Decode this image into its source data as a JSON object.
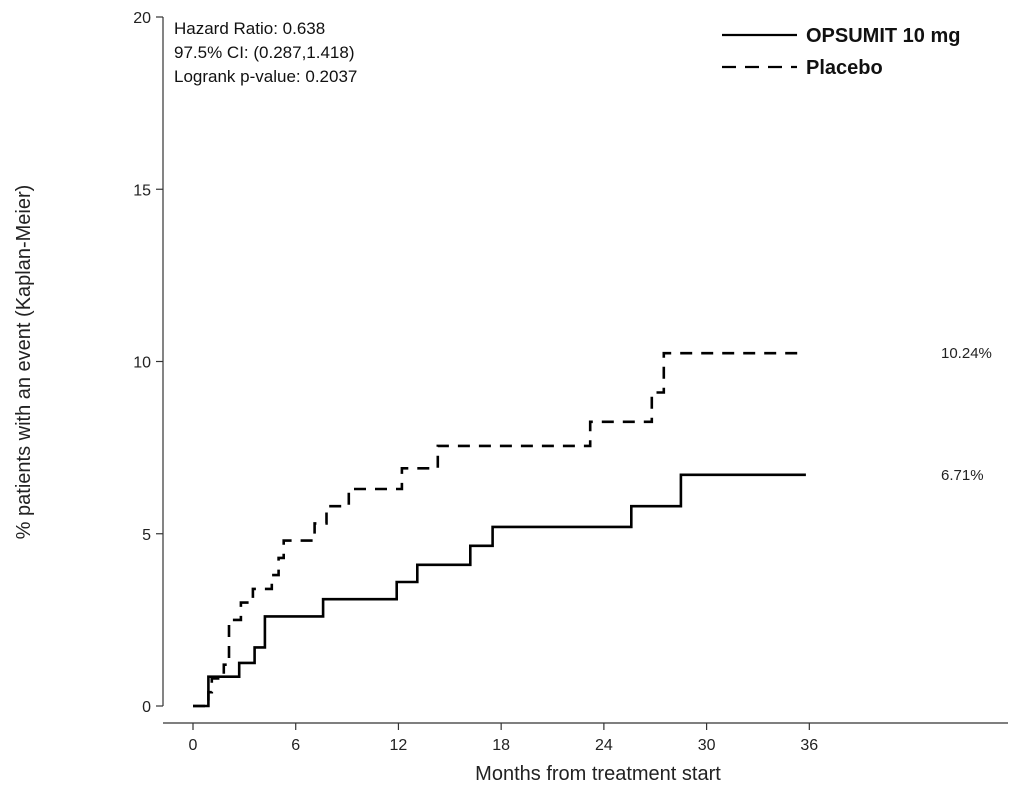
{
  "chart_data": {
    "type": "line",
    "subtype": "kaplan-meier step",
    "xlabel": "Months from treatment start",
    "ylabel": "% patients with an event (Kaplan-Meier)",
    "xlim": [
      0,
      36
    ],
    "ylim": [
      0,
      20
    ],
    "xticks": [
      0,
      6,
      12,
      18,
      24,
      30,
      36
    ],
    "yticks": [
      0,
      5,
      10,
      15,
      20
    ],
    "grid": false,
    "legend_position": "top-right",
    "annotations": [
      "Hazard Ratio: 0.638",
      "97.5% CI: (0.287,1.418)",
      "Logrank p-value: 0.2037"
    ],
    "series": [
      {
        "name": "OPSUMIT 10 mg",
        "line_style": "solid",
        "color": "#000000",
        "end_label": "6.71%",
        "points": [
          [
            0,
            0
          ],
          [
            0.9,
            0
          ],
          [
            0.9,
            0.85
          ],
          [
            2.7,
            0.85
          ],
          [
            2.7,
            1.25
          ],
          [
            3.6,
            1.25
          ],
          [
            3.6,
            1.7
          ],
          [
            4.2,
            1.7
          ],
          [
            4.2,
            2.6
          ],
          [
            7.6,
            2.6
          ],
          [
            7.6,
            3.1
          ],
          [
            11.9,
            3.1
          ],
          [
            11.9,
            3.6
          ],
          [
            13.1,
            3.6
          ],
          [
            13.1,
            4.1
          ],
          [
            16.2,
            4.1
          ],
          [
            16.2,
            4.65
          ],
          [
            17.5,
            4.65
          ],
          [
            17.5,
            5.2
          ],
          [
            25.6,
            5.2
          ],
          [
            25.6,
            5.8
          ],
          [
            28.5,
            5.8
          ],
          [
            28.5,
            6.71
          ],
          [
            35.8,
            6.71
          ]
        ]
      },
      {
        "name": "Placebo",
        "line_style": "dashed",
        "color": "#000000",
        "end_label": "10.24%",
        "points": [
          [
            0,
            0
          ],
          [
            0.9,
            0
          ],
          [
            0.9,
            0.4
          ],
          [
            1.1,
            0.4
          ],
          [
            1.1,
            0.8
          ],
          [
            1.8,
            0.8
          ],
          [
            1.8,
            1.2
          ],
          [
            2.1,
            1.2
          ],
          [
            2.1,
            2.5
          ],
          [
            2.8,
            2.5
          ],
          [
            2.8,
            3.0
          ],
          [
            3.5,
            3.0
          ],
          [
            3.5,
            3.4
          ],
          [
            4.6,
            3.4
          ],
          [
            4.6,
            3.8
          ],
          [
            5.0,
            3.8
          ],
          [
            5.0,
            4.3
          ],
          [
            5.3,
            4.3
          ],
          [
            5.3,
            4.8
          ],
          [
            7.1,
            4.8
          ],
          [
            7.1,
            5.3
          ],
          [
            7.8,
            5.3
          ],
          [
            7.8,
            5.8
          ],
          [
            9.1,
            5.8
          ],
          [
            9.1,
            6.3
          ],
          [
            12.2,
            6.3
          ],
          [
            12.2,
            6.9
          ],
          [
            14.3,
            6.9
          ],
          [
            14.3,
            7.55
          ],
          [
            23.2,
            7.55
          ],
          [
            23.2,
            8.25
          ],
          [
            26.8,
            8.25
          ],
          [
            26.8,
            9.1
          ],
          [
            27.5,
            9.1
          ],
          [
            27.5,
            10.24
          ],
          [
            35.8,
            10.24
          ]
        ]
      }
    ]
  }
}
